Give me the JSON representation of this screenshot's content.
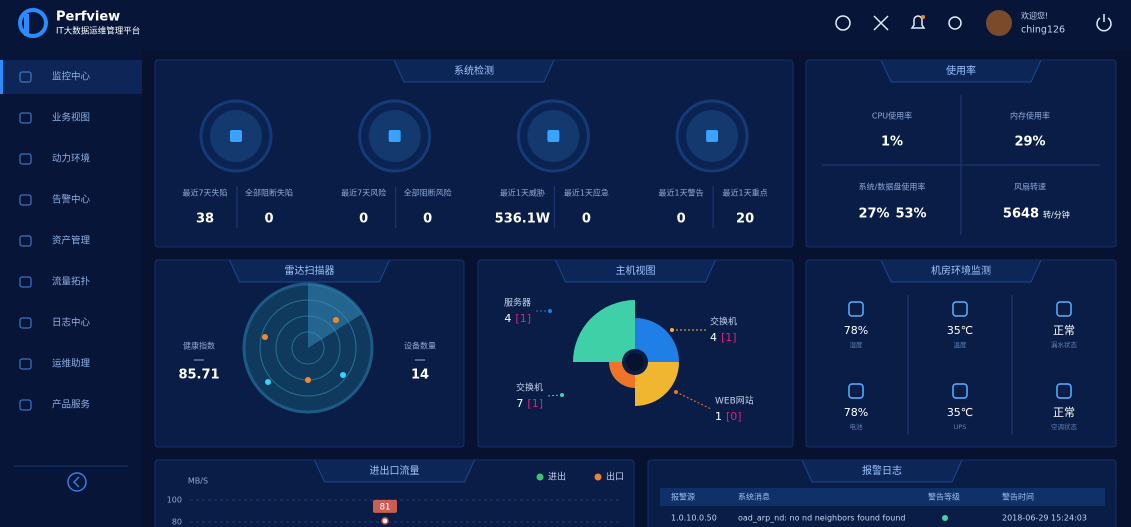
{
  "header": {
    "logo": "Perfview",
    "subtitle": "IT大数据运维管理平台",
    "welcome": "欢迎您!",
    "user": "ching126"
  },
  "sidebar": {
    "items": [
      "监控中心",
      "业务视图",
      "动力环境",
      "告警中心",
      "资产管理",
      "流量拓扑",
      "日志中心",
      "运维助理",
      "产品服务"
    ]
  },
  "system": {
    "title": "系统检测",
    "groups": [
      {
        "items": [
          {
            "label": "最近7天失陷",
            "value": "38"
          },
          {
            "label": "全部阻断失陷",
            "value": "0"
          }
        ]
      },
      {
        "items": [
          {
            "label": "最近7天风险",
            "value": "0"
          },
          {
            "label": "全部阻断风险",
            "value": "0"
          }
        ]
      },
      {
        "items": [
          {
            "label": "最近1天威胁",
            "value": "536.1W"
          },
          {
            "label": "最近1天应急",
            "value": "0"
          }
        ]
      },
      {
        "items": [
          {
            "label": "最近1天警告",
            "value": "0"
          },
          {
            "label": "最近1天重点",
            "value": "20"
          }
        ]
      }
    ]
  },
  "usage": {
    "title": "使用率",
    "cpu": {
      "label": "CPU使用率",
      "value": "1%"
    },
    "memory": {
      "label": "内存使用率",
      "value": "29%"
    },
    "disk": {
      "label": "系统/数据盘使用率",
      "values": [
        "27%",
        "53%"
      ]
    },
    "fan": {
      "label": "风扇转速",
      "value": "5648",
      "unit": "转/分钟"
    }
  },
  "radar": {
    "title": "雷达扫描器",
    "health": {
      "label": "健康指数",
      "value": "85.71"
    },
    "devices": {
      "label": "设备数量",
      "value": "14"
    }
  },
  "hosts": {
    "title": "主机视图",
    "type": "rose",
    "items": [
      {
        "name": "服务器",
        "count": 4,
        "alarm": "[1]",
        "color": "#1f7fe6"
      },
      {
        "name": "交换机",
        "count": 4,
        "alarm": "[1]",
        "color": "#f0b62f"
      },
      {
        "name": "WEB网站",
        "count": 1,
        "alarm": "[0]",
        "color": "#ee7428"
      },
      {
        "name": "交换机",
        "count": 7,
        "alarm": "[1]",
        "color": "#3fd0a8"
      }
    ]
  },
  "environment": {
    "title": "机房环境监测",
    "items": [
      {
        "value": "78%",
        "label": "湿度"
      },
      {
        "value": "35℃",
        "label": "温度"
      },
      {
        "value": "正常",
        "label": "漏水状态"
      },
      {
        "value": "78%",
        "label": "电池"
      },
      {
        "value": "35℃",
        "label": "UPS"
      },
      {
        "value": "正常",
        "label": "空调状态"
      }
    ]
  },
  "traffic": {
    "title": "进出口流量",
    "unit": "MB/S",
    "ylim": [
      0,
      100
    ],
    "yticks": [
      100,
      80
    ],
    "legend": [
      {
        "name": "进出",
        "color": "#3ec26b"
      },
      {
        "name": "出口",
        "color": "#e8843a"
      }
    ],
    "marker": 81
  },
  "alarms": {
    "title": "报警日志",
    "columns": [
      "报警源",
      "系统消息",
      "警告等级",
      "警告时间"
    ],
    "rows": [
      {
        "source": "1.0.10.0.50",
        "message": "oad_arp_nd: no nd neighbors found found",
        "time": "2018-06-29 15:24:03"
      }
    ]
  }
}
